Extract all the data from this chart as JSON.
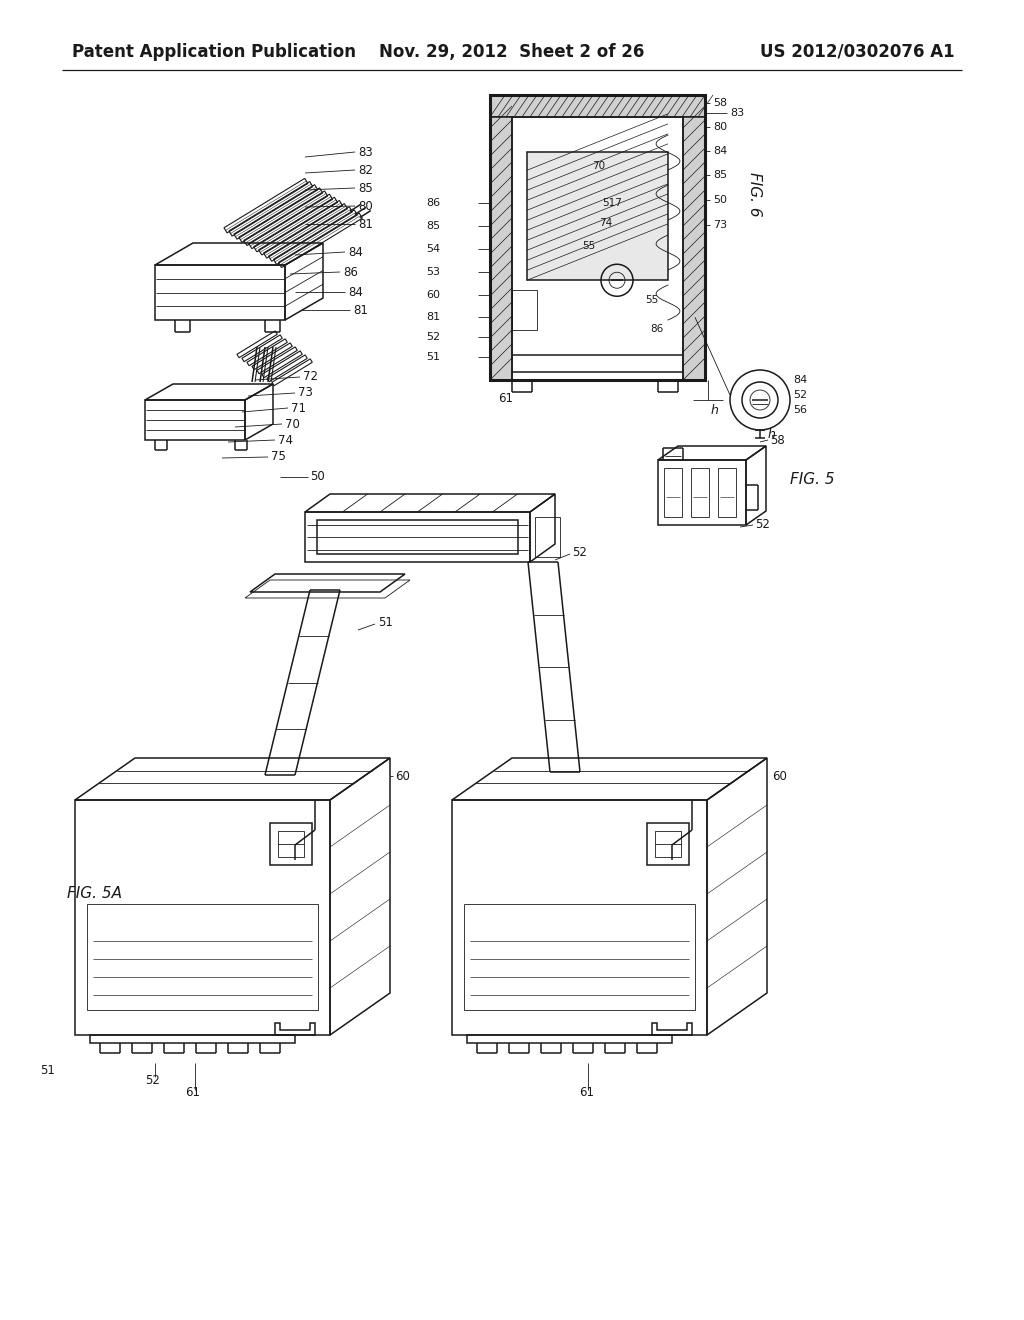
{
  "bg_color": "#ffffff",
  "header_left": "Patent Application Publication",
  "header_mid": "Nov. 29, 2012  Sheet 2 of 26",
  "header_right": "US 2012/0302076 A1",
  "line_color": "#1a1a1a",
  "line_width": 1.1,
  "thin_line": 0.6,
  "thick_line": 2.2,
  "hatch_line": 0.5
}
